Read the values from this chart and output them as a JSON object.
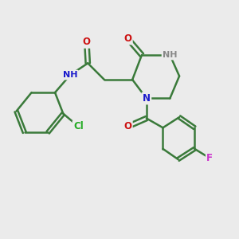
{
  "bg_color": "#ebebeb",
  "bond_color": "#3a7a3a",
  "bond_width": 1.8,
  "atom_colors": {
    "C": "#3a7a3a",
    "N": "#1a1acc",
    "O": "#cc1111",
    "Cl": "#22aa22",
    "F": "#cc33cc",
    "NH": "#888888"
  },
  "font_size": 8.5,
  "xlim": [
    0,
    10
  ],
  "ylim": [
    0,
    10
  ]
}
